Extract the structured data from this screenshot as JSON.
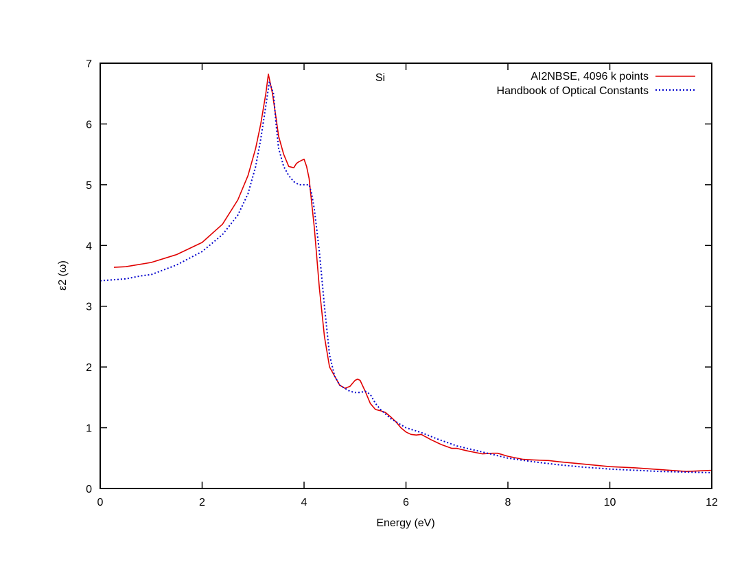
{
  "chart_data": {
    "type": "line",
    "title": "Si",
    "xlabel": "Energy (eV)",
    "ylabel": "ε2 (ω)",
    "xlim": [
      0,
      12
    ],
    "ylim": [
      0,
      7
    ],
    "xticks": [
      0,
      2,
      4,
      6,
      8,
      10,
      12
    ],
    "yticks": [
      0,
      1,
      2,
      3,
      4,
      5,
      6,
      7
    ],
    "grid": false,
    "legend_position": "top-right",
    "series": [
      {
        "name": "AI2NBSE, 4096 k points",
        "color": "#e00000",
        "style": "solid",
        "x": [
          0.27,
          0.5,
          1.0,
          1.5,
          2.0,
          2.4,
          2.7,
          2.9,
          3.05,
          3.15,
          3.25,
          3.3,
          3.38,
          3.45,
          3.5,
          3.6,
          3.7,
          3.8,
          3.85,
          3.9,
          4.0,
          4.05,
          4.1,
          4.15,
          4.2,
          4.3,
          4.4,
          4.5,
          4.6,
          4.7,
          4.8,
          4.9,
          5.0,
          5.05,
          5.1,
          5.2,
          5.3,
          5.4,
          5.5,
          5.6,
          5.7,
          5.8,
          5.9,
          6.0,
          6.1,
          6.2,
          6.3,
          6.5,
          6.7,
          6.9,
          7.0,
          7.2,
          7.5,
          7.7,
          7.8,
          8.0,
          8.3,
          8.5,
          8.8,
          9.0,
          9.5,
          10.0,
          10.5,
          11.0,
          11.5,
          12.0
        ],
        "values": [
          3.64,
          3.65,
          3.72,
          3.85,
          4.05,
          4.35,
          4.75,
          5.15,
          5.6,
          6.0,
          6.5,
          6.82,
          6.5,
          6.1,
          5.8,
          5.5,
          5.3,
          5.28,
          5.35,
          5.38,
          5.42,
          5.3,
          5.1,
          4.7,
          4.3,
          3.3,
          2.5,
          2.0,
          1.85,
          1.7,
          1.65,
          1.68,
          1.78,
          1.8,
          1.78,
          1.6,
          1.4,
          1.3,
          1.28,
          1.25,
          1.18,
          1.1,
          1.0,
          0.93,
          0.89,
          0.88,
          0.89,
          0.8,
          0.72,
          0.66,
          0.66,
          0.62,
          0.57,
          0.58,
          0.58,
          0.53,
          0.48,
          0.47,
          0.46,
          0.44,
          0.4,
          0.36,
          0.34,
          0.31,
          0.28,
          0.3
        ]
      },
      {
        "name": "Handbook of Optical Constants",
        "color": "#0000cc",
        "style": "dotted",
        "x": [
          0.0,
          0.5,
          0.8,
          1.0,
          1.5,
          2.0,
          2.4,
          2.7,
          2.9,
          3.05,
          3.15,
          3.25,
          3.32,
          3.4,
          3.45,
          3.5,
          3.6,
          3.7,
          3.8,
          3.9,
          4.0,
          4.1,
          4.15,
          4.2,
          4.3,
          4.4,
          4.5,
          4.6,
          4.7,
          4.8,
          4.9,
          5.0,
          5.1,
          5.2,
          5.3,
          5.4,
          5.5,
          5.7,
          6.0,
          6.3,
          6.6,
          7.0,
          7.5,
          8.0,
          8.5,
          9.0,
          9.5,
          10.0,
          10.5,
          11.0,
          11.5,
          12.0
        ],
        "values": [
          3.42,
          3.45,
          3.5,
          3.52,
          3.68,
          3.9,
          4.18,
          4.5,
          4.85,
          5.3,
          5.75,
          6.3,
          6.7,
          6.5,
          6.0,
          5.6,
          5.3,
          5.15,
          5.05,
          5.0,
          5.0,
          5.0,
          4.85,
          4.6,
          3.9,
          3.0,
          2.2,
          1.85,
          1.7,
          1.65,
          1.6,
          1.58,
          1.58,
          1.6,
          1.55,
          1.4,
          1.3,
          1.15,
          1.0,
          0.92,
          0.82,
          0.7,
          0.6,
          0.5,
          0.44,
          0.39,
          0.35,
          0.32,
          0.3,
          0.28,
          0.27,
          0.26
        ]
      }
    ]
  }
}
